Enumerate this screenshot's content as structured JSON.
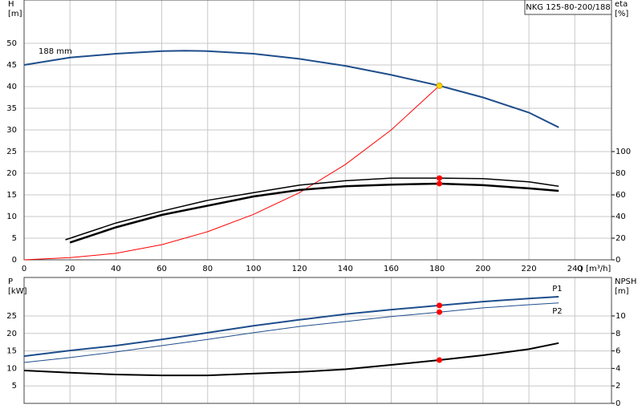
{
  "chart_data": [
    {
      "type": "line",
      "title": "NKG 125-80-200/188",
      "ylabel": "H",
      "yunit": "[m]",
      "y2label": "eta",
      "y2unit": "[%]",
      "xlabel": "Q [m³/h]",
      "xlim": [
        0,
        256
      ],
      "ylim": [
        0,
        60
      ],
      "y2lim": [
        0,
        240
      ],
      "xticks": [
        0,
        20,
        40,
        60,
        80,
        100,
        120,
        140,
        160,
        180,
        200,
        220,
        240
      ],
      "yticks": [
        0,
        5,
        10,
        15,
        20,
        25,
        30,
        35,
        40,
        45,
        50
      ],
      "y2ticks": [
        0,
        20,
        40,
        60,
        80,
        100
      ],
      "grid": true,
      "series": [
        {
          "name": "188 mm",
          "color": "#1f4e8c",
          "axis": "y",
          "x": [
            0,
            20,
            40,
            60,
            70,
            80,
            100,
            120,
            140,
            160,
            181,
            200,
            220,
            233
          ],
          "values": [
            45,
            46.7,
            47.6,
            48.2,
            48.3,
            48.2,
            47.6,
            46.4,
            44.8,
            42.7,
            40.2,
            37.5,
            34,
            30.6
          ]
        },
        {
          "color": "#ff0000",
          "axis": "y",
          "x": [
            0,
            20,
            40,
            60,
            80,
            100,
            120,
            140,
            160,
            181
          ],
          "values": [
            0,
            0.5,
            1.5,
            3.5,
            6.5,
            10.5,
            15.5,
            22,
            30,
            40.2
          ]
        },
        {
          "color": "#000000",
          "axis": "y2",
          "x": [
            18,
            40,
            60,
            80,
            100,
            120,
            140,
            160,
            181,
            200,
            220,
            233
          ],
          "values": [
            18.5,
            34,
            45,
            55,
            62,
            69,
            73,
            75.5,
            75.5,
            75,
            72,
            68
          ]
        },
        {
          "color": "#000000",
          "axis": "y2",
          "x": [
            20,
            40,
            60,
            80,
            100,
            120,
            140,
            160,
            181,
            200,
            220,
            233
          ],
          "values": [
            16,
            30,
            41.5,
            50,
            58.5,
            64.5,
            68,
            69.5,
            70.4,
            69,
            66,
            63.7
          ]
        }
      ],
      "points": [
        {
          "x": 181,
          "y": 75.5,
          "axis": "y2",
          "color": "#ff0000"
        },
        {
          "x": 181,
          "y": 70.4,
          "axis": "y2",
          "color": "#ff0000"
        },
        {
          "x": 181,
          "y": 40.2,
          "axis": "y",
          "color": "#ffd700"
        }
      ]
    },
    {
      "type": "line",
      "ylabel": "P",
      "yunit": "[kW]",
      "y2label": "NPSH",
      "y2unit": "[m]",
      "xlim": [
        0,
        256
      ],
      "ylim": [
        0,
        36
      ],
      "y2lim": [
        0,
        14.4
      ],
      "yticks": [
        5,
        10,
        15,
        20,
        25
      ],
      "y2ticks": [
        0,
        2,
        4,
        6,
        8,
        10
      ],
      "grid": true,
      "series": [
        {
          "name": "P1",
          "color": "#1f4e8c",
          "axis": "y",
          "x": [
            0,
            20,
            40,
            60,
            80,
            100,
            120,
            140,
            160,
            181,
            200,
            220,
            233
          ],
          "values": [
            13.5,
            15.1,
            16.5,
            18.3,
            20.2,
            22.2,
            23.9,
            25.5,
            26.8,
            28,
            29.1,
            30,
            30.5
          ]
        },
        {
          "name": "P2",
          "color": "#1f4e8c",
          "axis": "y",
          "x": [
            0,
            20,
            40,
            60,
            80,
            100,
            120,
            140,
            160,
            181,
            200,
            220,
            233
          ],
          "values": [
            11.7,
            13.1,
            14.7,
            16.5,
            18.3,
            20.2,
            22,
            23.4,
            24.8,
            26.1,
            27.3,
            28.2,
            28.7
          ]
        },
        {
          "color": "#000000",
          "axis": "y2",
          "x": [
            0,
            20,
            40,
            60,
            80,
            100,
            120,
            140,
            160,
            181,
            200,
            220,
            233
          ],
          "values": [
            3.76,
            3.5,
            3.3,
            3.2,
            3.2,
            3.4,
            3.6,
            3.9,
            4.4,
            4.95,
            5.5,
            6.2,
            6.9
          ]
        }
      ],
      "points": [
        {
          "x": 181,
          "y": 28,
          "axis": "y",
          "color": "#ff0000"
        },
        {
          "x": 181,
          "y": 26.1,
          "axis": "y",
          "color": "#ff0000"
        },
        {
          "x": 181,
          "y": 4.95,
          "axis": "y2",
          "color": "#ff0000"
        }
      ]
    }
  ]
}
